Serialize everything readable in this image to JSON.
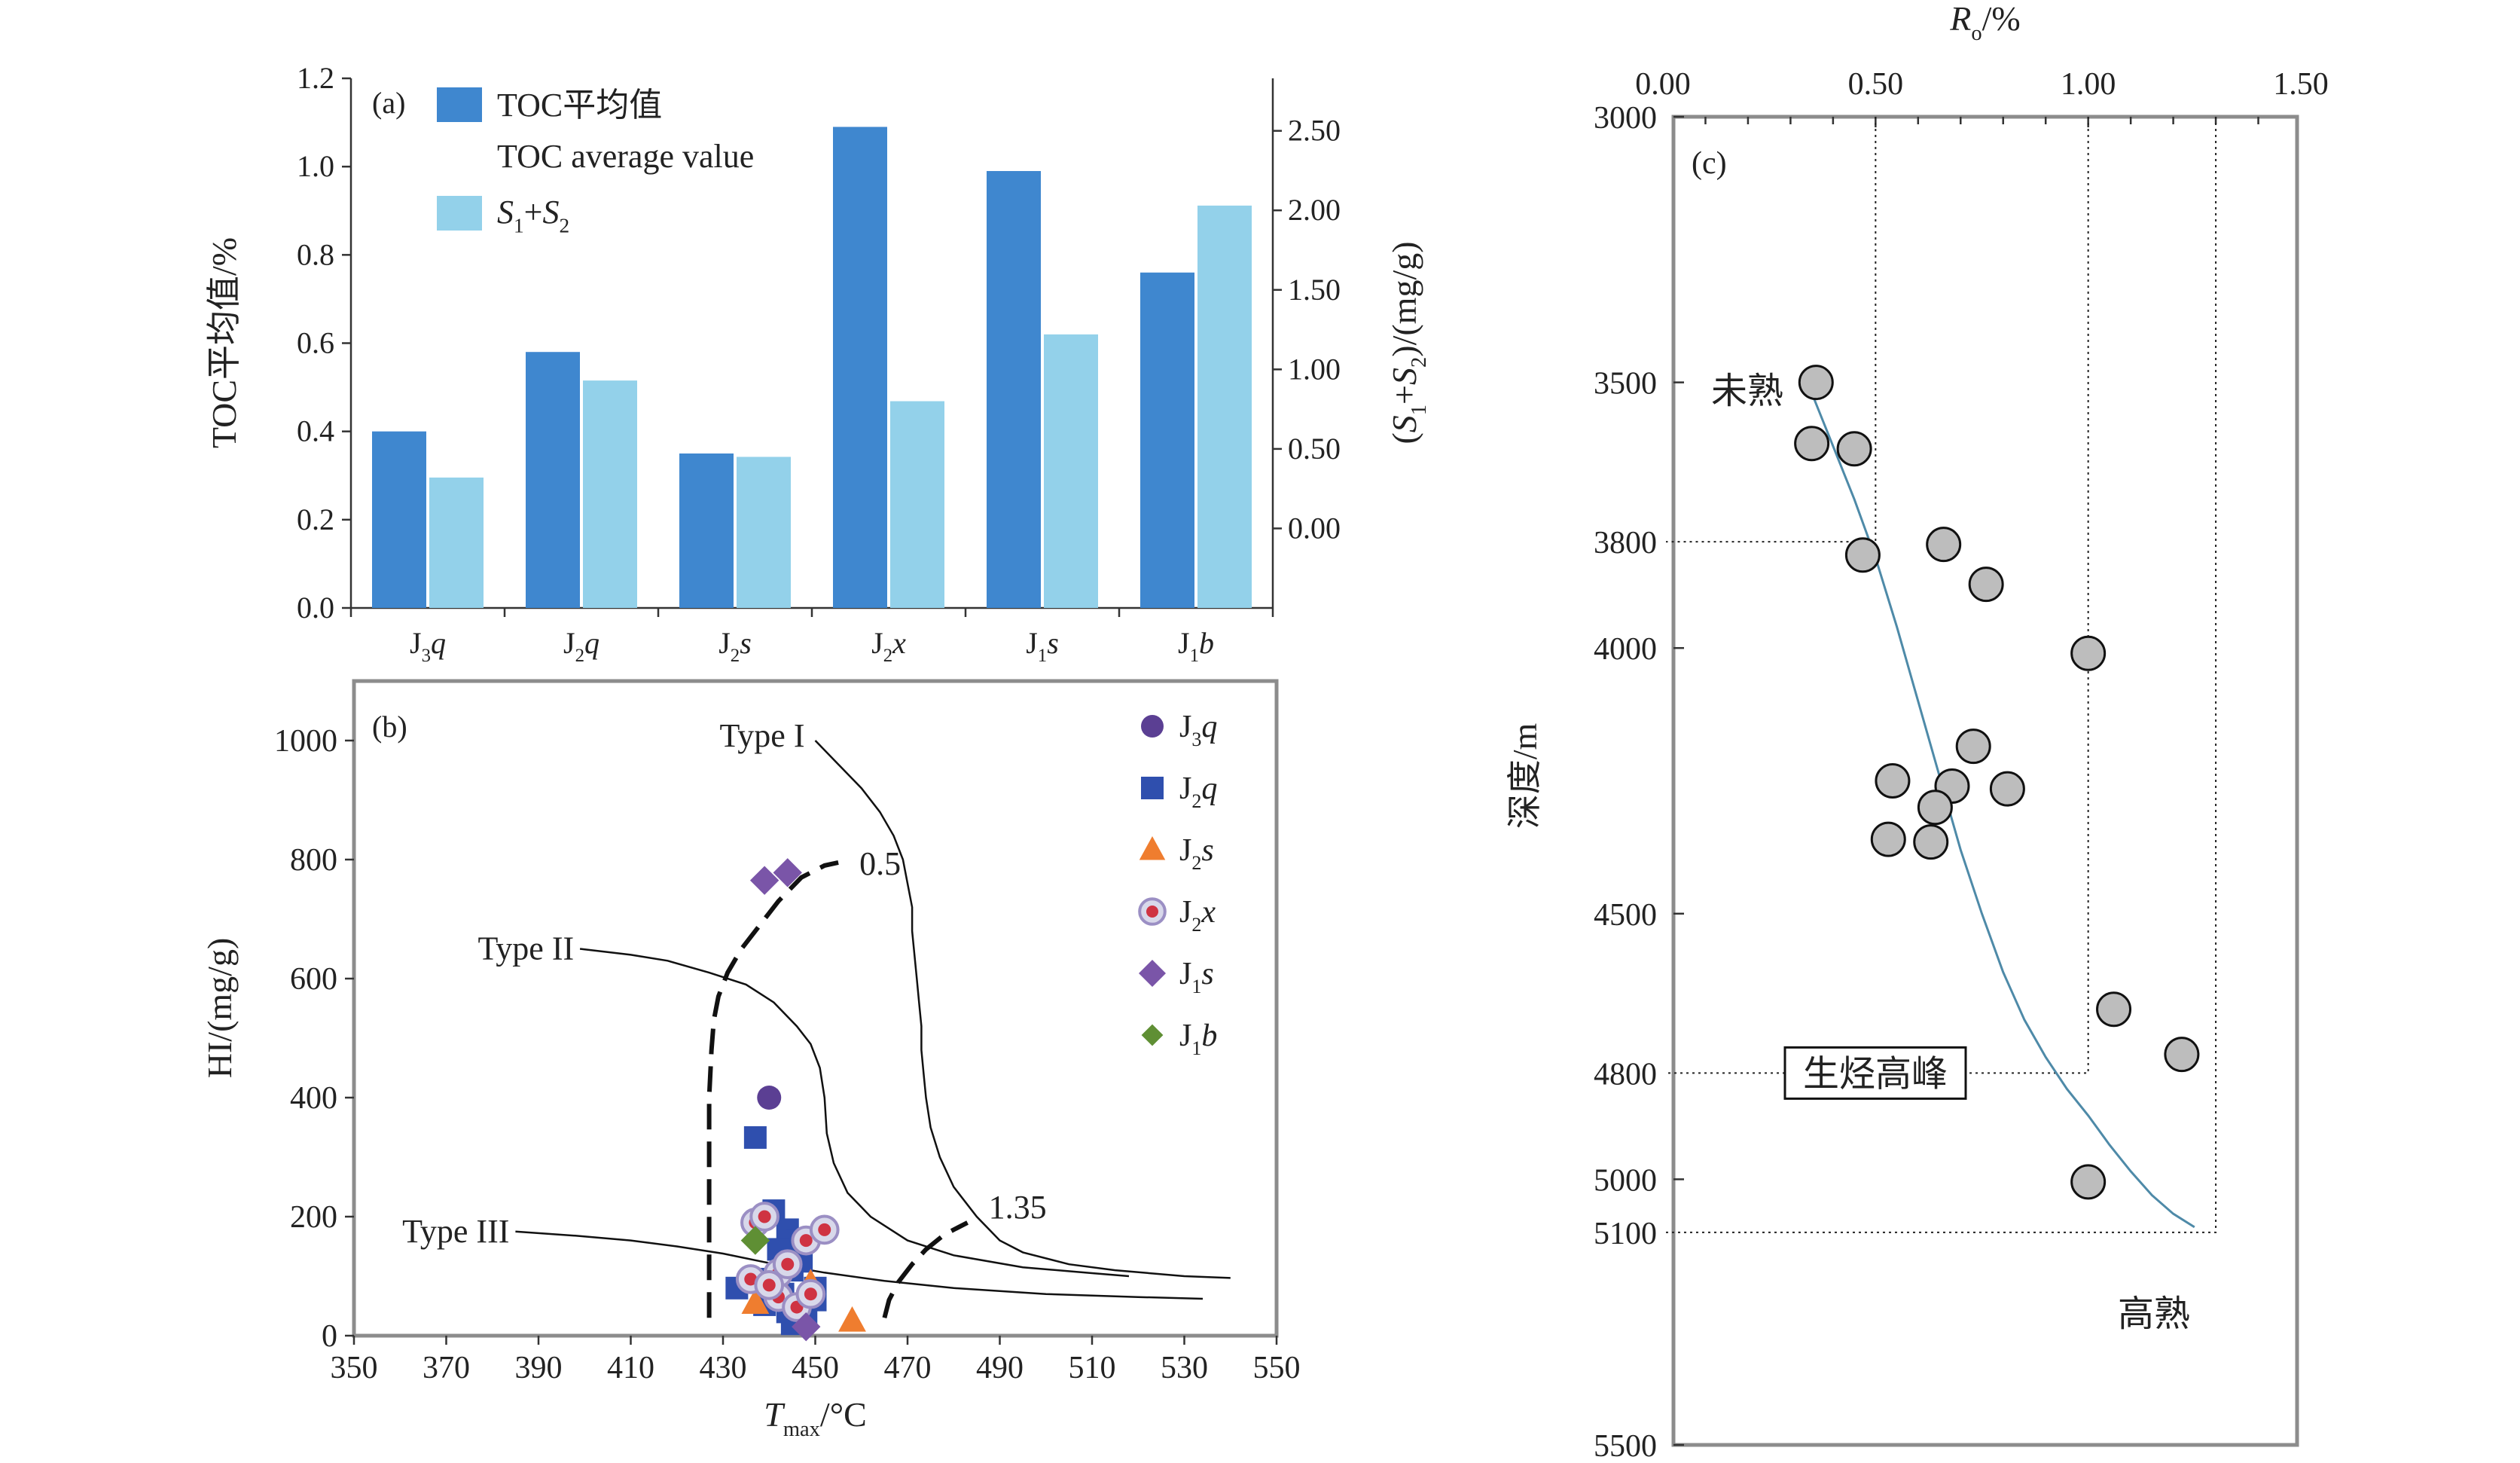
{
  "chart_data": [
    {
      "id": "a",
      "type": "bar",
      "panel_label": "(a)",
      "categories": [
        {
          "main": "J",
          "sub": "3",
          "tail": "q"
        },
        {
          "main": "J",
          "sub": "2",
          "tail": "q"
        },
        {
          "main": "J",
          "sub": "2",
          "tail": "s"
        },
        {
          "main": "J",
          "sub": "2",
          "tail": "x"
        },
        {
          "main": "J",
          "sub": "1",
          "tail": "s"
        },
        {
          "main": "J",
          "sub": "1",
          "tail": "b"
        }
      ],
      "series": [
        {
          "name": "TOC平均值",
          "name2": "TOC average value",
          "axis": "left",
          "color": "#3f87cf",
          "values": [
            0.4,
            0.58,
            0.35,
            1.09,
            0.99,
            0.76
          ]
        },
        {
          "name": "S1+S2",
          "axis": "right",
          "color": "#93d1ea",
          "values": [
            0.32,
            0.93,
            0.45,
            0.8,
            1.22,
            2.03
          ]
        }
      ],
      "legend": {
        "toc_line1": "TOC平均值",
        "toc_line2": "TOC average value",
        "s_label": "S1+S2",
        "position": "top-left"
      },
      "ylabel_left": "TOC平均值/%",
      "ylabel_right": "(S1+S2)/(mg/g)",
      "ylim_left": [
        0,
        1.2
      ],
      "yticks_left": [
        "0.0",
        "0.2",
        "0.4",
        "0.6",
        "0.8",
        "1.0",
        "1.2"
      ],
      "ylim_right": [
        -0.5,
        2.83
      ],
      "yticks_right": [
        "0.00",
        "0.50",
        "1.00",
        "1.50",
        "2.00",
        "2.50"
      ]
    },
    {
      "id": "b",
      "type": "scatter",
      "panel_label": "(b)",
      "xlabel": "Tmax/°C",
      "ylabel": "HI/(mg/g)",
      "xlim": [
        350,
        550
      ],
      "ylim": [
        0,
        1100
      ],
      "xticks": [
        "350",
        "370",
        "390",
        "410",
        "430",
        "450",
        "470",
        "490",
        "510",
        "530",
        "550"
      ],
      "yticks": [
        "0",
        "200",
        "400",
        "600",
        "800",
        "1000"
      ],
      "curve_labels": [
        "Type I",
        "Type II",
        "Type III"
      ],
      "iso_labels": [
        "0.5",
        "1.35"
      ],
      "curves": {
        "type_i": [
          [
            450,
            1000
          ],
          [
            455,
            960
          ],
          [
            460,
            920
          ],
          [
            464,
            880
          ],
          [
            467,
            840
          ],
          [
            469,
            800
          ],
          [
            470,
            760
          ],
          [
            471,
            720
          ],
          [
            471,
            680
          ],
          [
            471.5,
            640
          ],
          [
            472,
            600
          ],
          [
            472.5,
            560
          ],
          [
            473,
            520
          ],
          [
            473,
            480
          ],
          [
            473.5,
            440
          ],
          [
            474,
            400
          ],
          [
            475,
            350
          ],
          [
            477,
            300
          ],
          [
            480,
            250
          ],
          [
            485,
            200
          ],
          [
            490,
            160
          ],
          [
            495,
            140
          ],
          [
            505,
            120
          ],
          [
            515,
            110
          ],
          [
            530,
            100
          ],
          [
            540,
            97
          ]
        ],
        "type_ii": [
          [
            399,
            650
          ],
          [
            410,
            640
          ],
          [
            418,
            630
          ],
          [
            427,
            610
          ],
          [
            435,
            590
          ],
          [
            441,
            560
          ],
          [
            446,
            520
          ],
          [
            449,
            490
          ],
          [
            451,
            450
          ],
          [
            452,
            400
          ],
          [
            452.5,
            340
          ],
          [
            454,
            290
          ],
          [
            457,
            240
          ],
          [
            462,
            200
          ],
          [
            470,
            160
          ],
          [
            480,
            135
          ],
          [
            495,
            115
          ],
          [
            510,
            105
          ],
          [
            518,
            100
          ]
        ],
        "type_iii": [
          [
            385,
            175
          ],
          [
            398,
            168
          ],
          [
            410,
            160
          ],
          [
            420,
            150
          ],
          [
            430,
            138
          ],
          [
            440,
            122
          ],
          [
            452,
            106
          ],
          [
            465,
            92
          ],
          [
            480,
            80
          ],
          [
            500,
            70
          ],
          [
            520,
            65
          ],
          [
            534,
            62
          ]
        ]
      },
      "iso_05": [
        [
          427,
          30
        ],
        [
          427,
          100
        ],
        [
          427,
          200
        ],
        [
          427,
          300
        ],
        [
          427,
          400
        ],
        [
          427.5,
          480
        ],
        [
          428,
          530
        ],
        [
          429,
          570
        ],
        [
          431,
          610
        ],
        [
          434,
          650
        ],
        [
          438,
          690
        ],
        [
          442,
          730
        ],
        [
          447,
          770
        ],
        [
          452,
          790
        ],
        [
          455,
          795
        ]
      ],
      "iso_135": [
        [
          465,
          30
        ],
        [
          466,
          60
        ],
        [
          468,
          90
        ],
        [
          471,
          120
        ],
        [
          474,
          145
        ],
        [
          478,
          170
        ],
        [
          483,
          190
        ]
      ],
      "series": [
        {
          "name": "J3q",
          "marker": "circle",
          "color": "#5b3f93",
          "points": [
            [
              440,
              400
            ]
          ]
        },
        {
          "name": "J2q",
          "marker": "square",
          "color": "#2f4fae",
          "points": [
            [
              437,
              333
            ],
            [
              441,
              210
            ],
            [
              444,
              178
            ],
            [
              446,
              160
            ],
            [
              442,
              145
            ],
            [
              447,
              125
            ],
            [
              445,
              110
            ],
            [
              440,
              95
            ],
            [
              450,
              80
            ],
            [
              433,
              80
            ],
            [
              443,
              70
            ],
            [
              450,
              60
            ],
            [
              439,
              52
            ],
            [
              444,
              40
            ],
            [
              448,
              30
            ],
            [
              445,
              20
            ]
          ]
        },
        {
          "name": "J2s",
          "marker": "triangle",
          "color": "#ef7d2f",
          "points": [
            [
              437,
              55
            ],
            [
              449,
              88
            ],
            [
              458,
              25
            ],
            [
              444,
              62
            ]
          ]
        },
        {
          "name": "J2x",
          "marker": "ring",
          "color": "#cf3342",
          "points": [
            [
              437,
              190
            ],
            [
              439,
              200
            ],
            [
              448,
              160
            ],
            [
              452,
              178
            ],
            [
              442,
              105
            ],
            [
              436,
              95
            ],
            [
              442,
              65
            ],
            [
              446,
              48
            ],
            [
              449,
              70
            ],
            [
              440,
              85
            ],
            [
              444,
              120
            ]
          ]
        },
        {
          "name": "J1s",
          "marker": "diamond",
          "color": "#7a55a8",
          "points": [
            [
              439,
              765
            ],
            [
              444,
              778
            ],
            [
              448,
              15
            ]
          ]
        },
        {
          "name": "J1b",
          "marker": "diamond",
          "color": "#5f8f34",
          "points": [
            [
              437,
              160
            ]
          ]
        }
      ],
      "legend_position": "top-right"
    },
    {
      "id": "c",
      "type": "scatter",
      "panel_label": "(c)",
      "xlabel": "Ro/%",
      "ylabel": "深度/m",
      "xlim": [
        0,
        1.5
      ],
      "ylim": [
        3000,
        5500
      ],
      "xticks": [
        "0.00",
        "0.50",
        "1.00",
        "1.50"
      ],
      "yticks": [
        "3000",
        "3500",
        "4000",
        "4500",
        "5000",
        "5500"
      ],
      "special_depths": [
        "3800",
        "4800",
        "5100"
      ],
      "special_depth_color": "#3b9cc2",
      "annotations": {
        "immature": "未熟",
        "peak": "生烃高峰",
        "high": "高熟"
      },
      "points": [
        [
          0.36,
          3500
        ],
        [
          0.35,
          3615
        ],
        [
          0.45,
          3625
        ],
        [
          0.47,
          3825
        ],
        [
          0.66,
          3805
        ],
        [
          0.76,
          3880
        ],
        [
          1.0,
          4010
        ],
        [
          0.73,
          4185
        ],
        [
          0.54,
          4250
        ],
        [
          0.68,
          4260
        ],
        [
          0.81,
          4265
        ],
        [
          0.64,
          4300
        ],
        [
          0.53,
          4360
        ],
        [
          0.63,
          4365
        ],
        [
          1.06,
          4680
        ],
        [
          1.22,
          4765
        ],
        [
          1.0,
          5005
        ]
      ],
      "trend": [
        [
          0.35,
          3520
        ],
        [
          0.4,
          3620
        ],
        [
          0.45,
          3720
        ],
        [
          0.5,
          3830
        ],
        [
          0.55,
          3960
        ],
        [
          0.6,
          4100
        ],
        [
          0.65,
          4240
        ],
        [
          0.7,
          4380
        ],
        [
          0.75,
          4500
        ],
        [
          0.8,
          4610
        ],
        [
          0.85,
          4700
        ],
        [
          0.9,
          4770
        ],
        [
          0.95,
          4830
        ],
        [
          1.0,
          4880
        ],
        [
          1.05,
          4935
        ],
        [
          1.1,
          4985
        ],
        [
          1.15,
          5030
        ],
        [
          1.2,
          5065
        ],
        [
          1.25,
          5090
        ]
      ],
      "guides": {
        "immature_ro": 0.5,
        "peak_ro": 1.0,
        "high_ro": 1.3
      },
      "point_color": "#bdbdbd"
    }
  ]
}
